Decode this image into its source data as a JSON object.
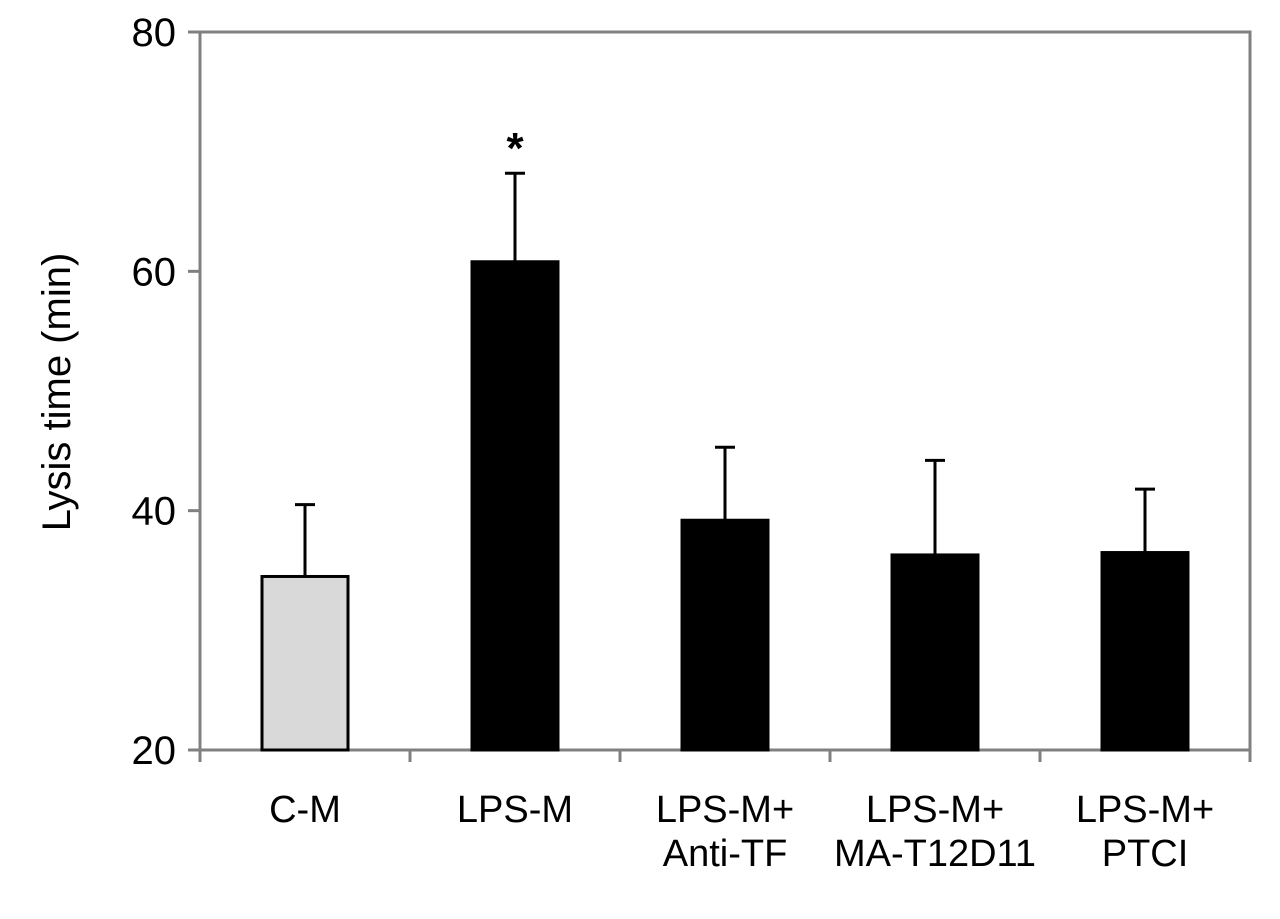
{
  "chart_data": {
    "type": "bar",
    "title": "",
    "xlabel": "",
    "ylabel": "Lysis time (min)",
    "ylim": [
      20,
      80
    ],
    "yticks": [
      20,
      40,
      60,
      80
    ],
    "grid": false,
    "legend": "none",
    "categories": [
      [
        "C-M"
      ],
      [
        "LPS-M"
      ],
      [
        "LPS-M+",
        "Anti-TF"
      ],
      [
        "LPS-M+",
        "MA-T12D11"
      ],
      [
        "LPS-M+",
        "PTCI"
      ]
    ],
    "values": [
      34.5,
      60.8,
      39.2,
      36.3,
      36.5
    ],
    "error_upper": [
      40.5,
      68.2,
      45.3,
      44.2,
      41.8
    ],
    "fill_colors": [
      "#d9d9d9",
      "#000000",
      "#000000",
      "#000000",
      "#000000"
    ],
    "annotations": [
      {
        "category_index": 1,
        "text": "*"
      }
    ],
    "axis_color": "#808080"
  }
}
